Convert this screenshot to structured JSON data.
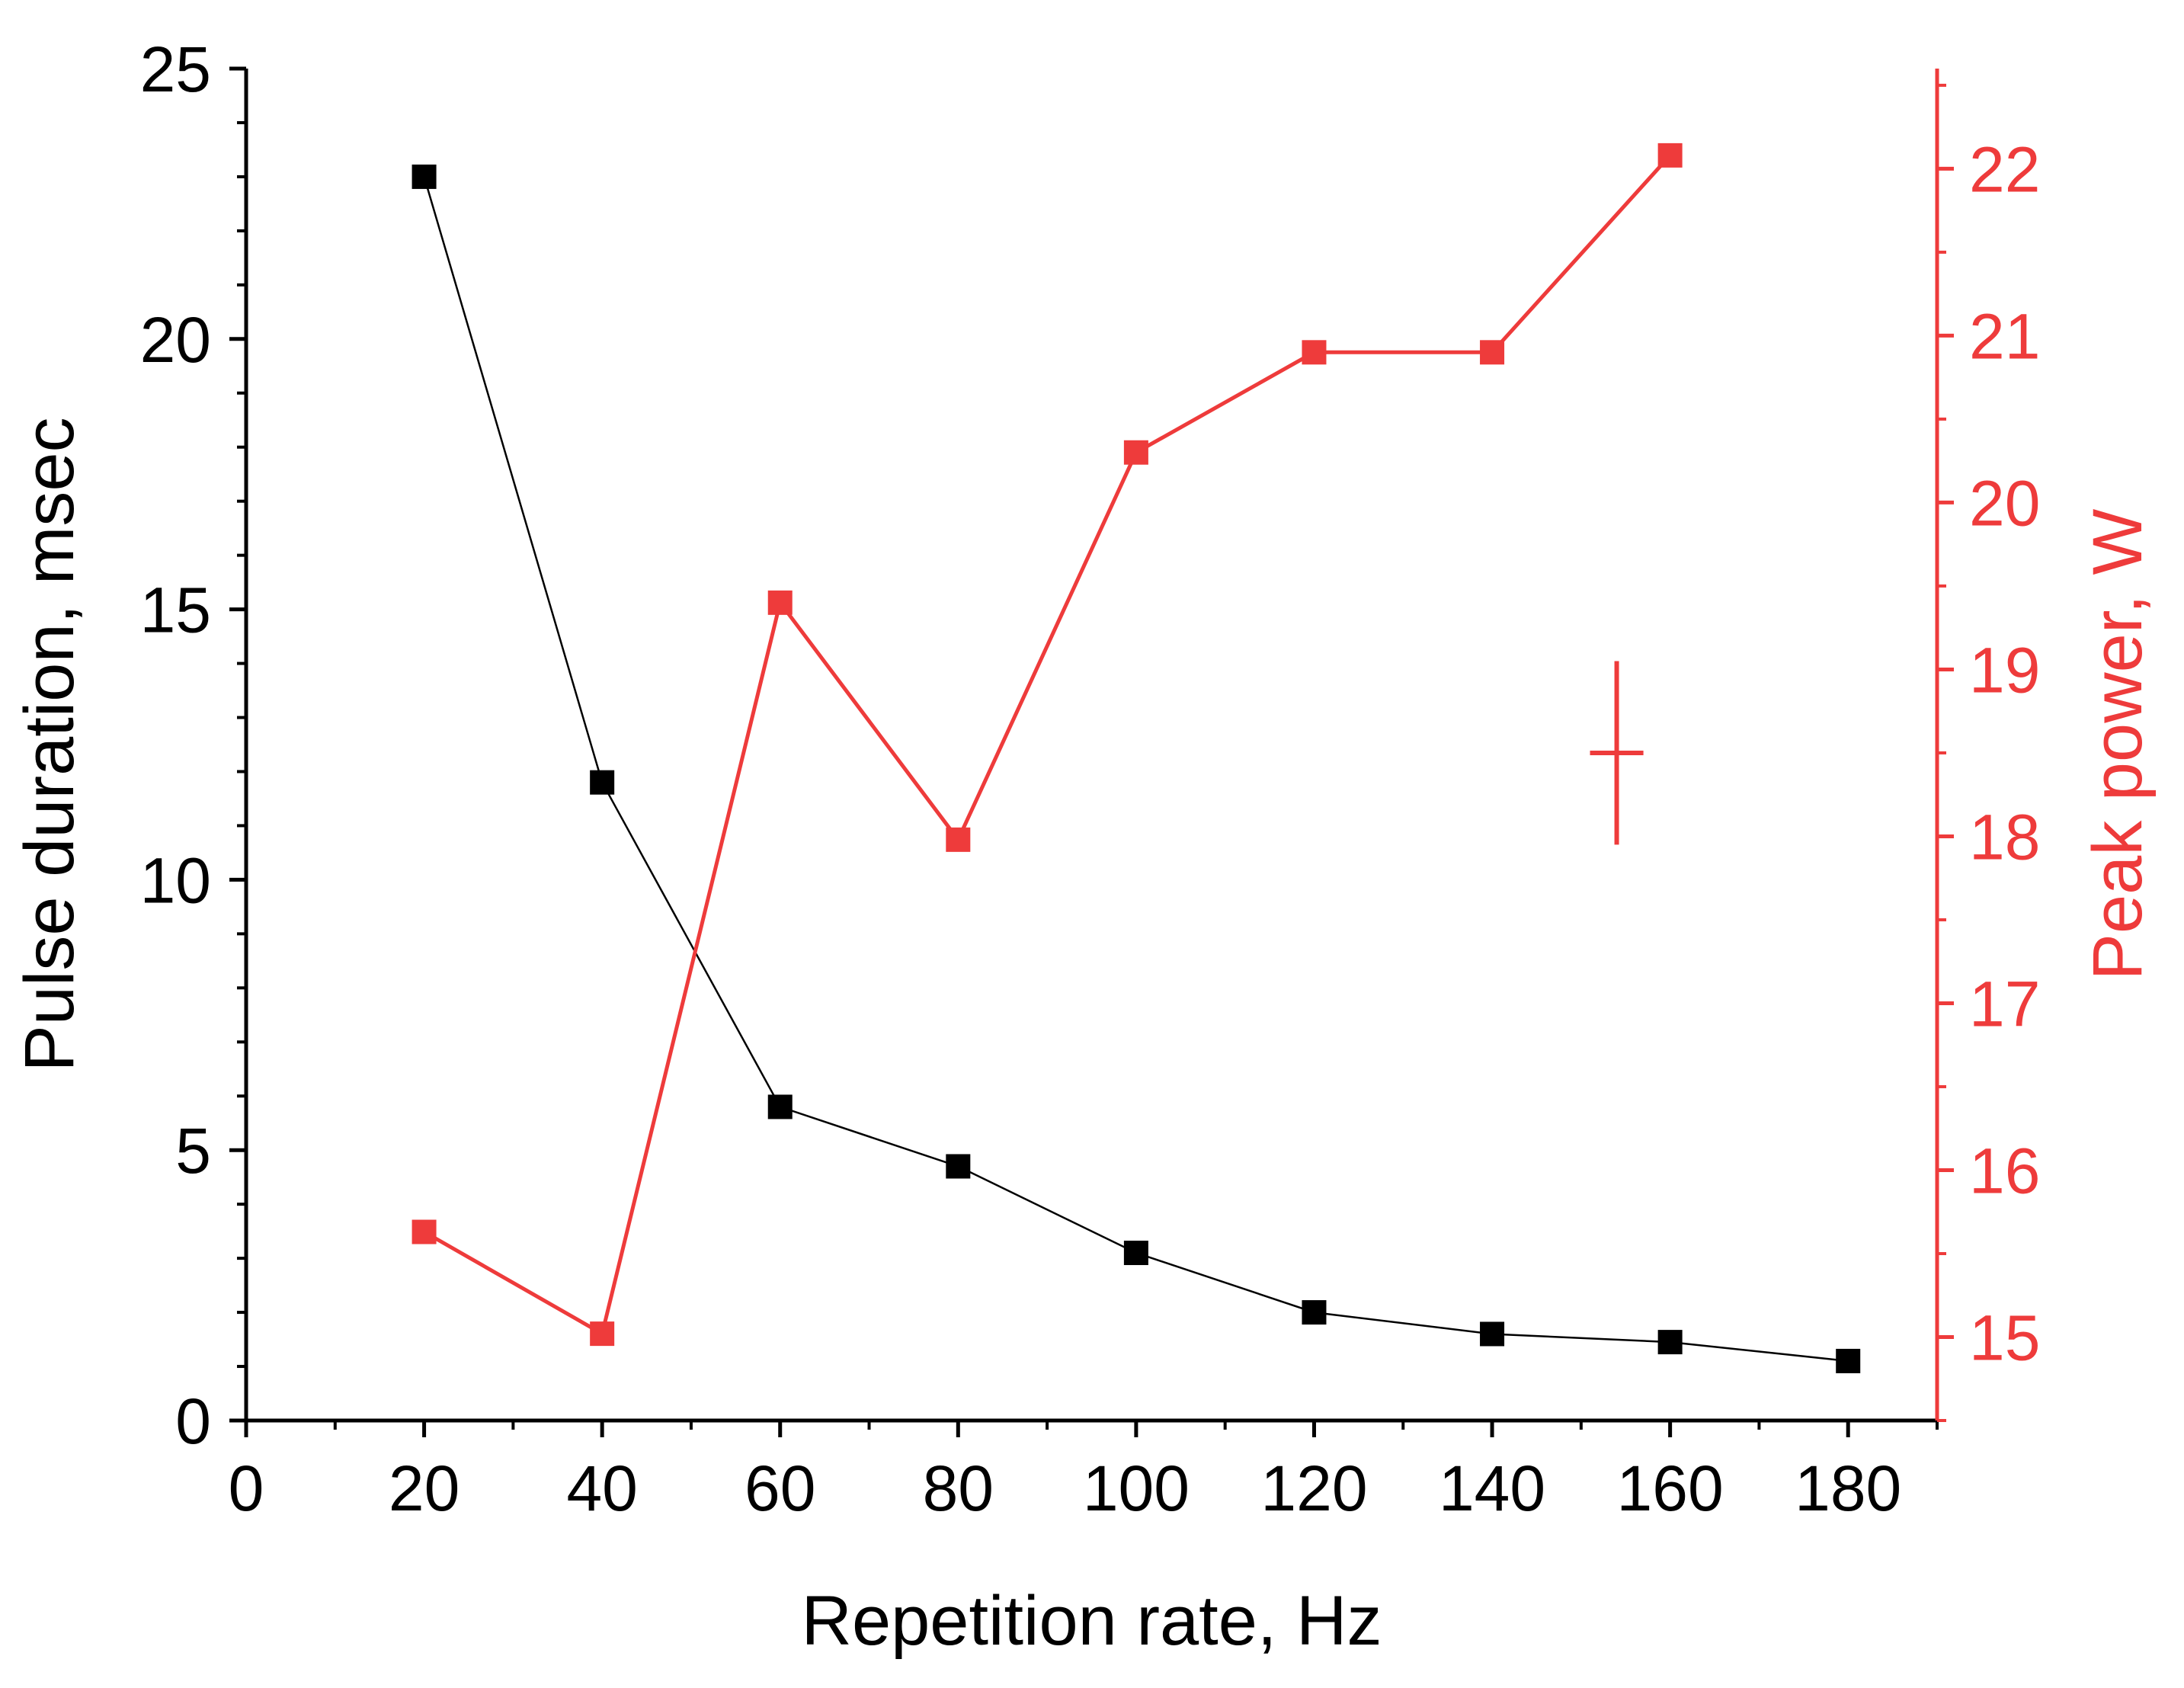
{
  "chart_data": {
    "type": "line",
    "title": "",
    "xlabel": "Repetition rate, Hz",
    "ylabel": "Pulse duration, msec",
    "y2label": "Peak power, W",
    "xlim": [
      0,
      190
    ],
    "ylim": [
      0,
      25
    ],
    "y2lim": [
      14.5,
      22.6
    ],
    "xticks": [
      "0",
      "20",
      "40",
      "60",
      "80",
      "100",
      "120",
      "140",
      "160",
      "180"
    ],
    "yticks": [
      "0",
      "5",
      "10",
      "15",
      "20",
      "25"
    ],
    "y2ticks": [
      "15",
      "16",
      "17",
      "18",
      "19",
      "20",
      "21",
      "22"
    ],
    "colors": {
      "left": "#000000",
      "right": "#ee3b3b"
    },
    "series": [
      {
        "name": "Pulse duration",
        "axis": "left",
        "color": "#000000",
        "x": [
          20,
          40,
          60,
          80,
          100,
          120,
          140,
          160,
          180
        ],
        "values": [
          23,
          11.8,
          5.8,
          4.7,
          3.1,
          2.0,
          1.6,
          1.45,
          1.1
        ]
      },
      {
        "name": "Peak power",
        "axis": "right",
        "color": "#ee3b3b",
        "x": [
          20,
          40,
          60,
          80,
          100,
          120,
          140,
          160
        ],
        "values": [
          15.63,
          15.02,
          19.4,
          17.98,
          20.3,
          20.9,
          20.9,
          22.08
        ]
      }
    ],
    "error_marker": {
      "x": 154,
      "y": 18.5,
      "axis": "right",
      "xerr": 3,
      "yerr": 0.55
    }
  }
}
